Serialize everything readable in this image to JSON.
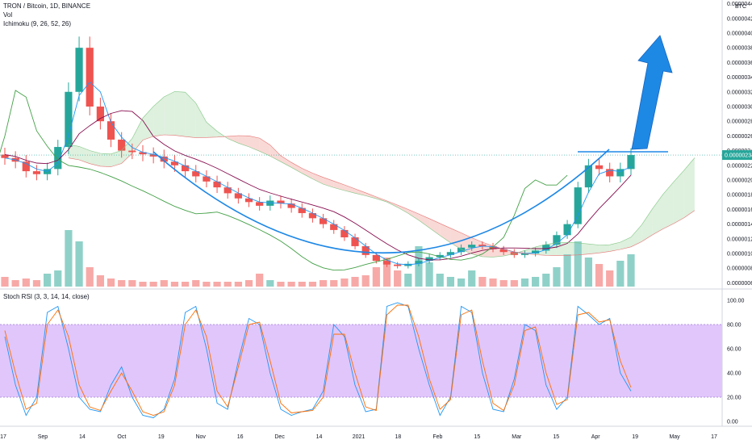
{
  "legend": {
    "symbol": "TRON / Bitcoin, 1D, BINANCE",
    "volume": "Vol",
    "ichimoku": "Ichimoku (9, 26, 52, 26)",
    "rsi": "Stoch RSI (3, 3, 14, 14, close)"
  },
  "colors": {
    "up": "#26a69a",
    "down": "#ef5350",
    "tenkan": "#2196f3",
    "kijun": "#880e4f",
    "lagging": "#43a047",
    "cloud_red": "#f8d0cc",
    "cloud_green": "#d6ecd6",
    "rsi_k": "#2196f3",
    "rsi_d": "#ff6d00",
    "rsi_band": "#e1c6fb",
    "arrow": "#1976d2",
    "cup": "#1e88e5"
  },
  "chart_data": [
    {
      "type": "line",
      "title": "",
      "price_axis": {
        "unit": "BTC",
        "ticks": [
          "0.00000440",
          "0.00000420",
          "0.00000400",
          "0.00000380",
          "0.00000360",
          "0.00000340",
          "0.00000320",
          "0.00000300",
          "0.00000280",
          "0.00000260",
          "0.00000240",
          "0.00000220",
          "0.00000200",
          "0.00000180",
          "0.00000160",
          "0.00000140",
          "0.00000120",
          "0.00000100",
          "0.00000080",
          "0.00000060"
        ],
        "current_price": "0.00000234",
        "range": [
          5.5e-07,
          4.45e-06
        ]
      },
      "x_axis": {
        "ticks": [
          "17",
          "Sep",
          "14",
          "Oct",
          "19",
          "Nov",
          "16",
          "Dec",
          "14",
          "2021",
          "18",
          "Feb",
          "15",
          "Mar",
          "15",
          "Apr",
          "19",
          "May",
          "17"
        ]
      },
      "series": [
        {
          "values": [
            2.3e-06,
            2.25e-06,
            2.12e-06,
            2.08e-06,
            2.15e-06,
            2.45e-06,
            3.2e-06,
            3.8e-06,
            3e-06,
            2.8e-06,
            2.55e-06,
            2.4e-06,
            2.38e-06,
            2.35e-06,
            2.32e-06,
            2.25e-06,
            2.2e-06,
            2.12e-06,
            2.05e-06,
            1.98e-06,
            1.9e-06,
            1.82e-06,
            1.75e-06,
            1.7e-06,
            1.65e-06,
            1.72e-06,
            1.68e-06,
            1.62e-06,
            1.55e-06,
            1.48e-06,
            1.4e-06,
            1.32e-06,
            1.22e-06,
            1.1e-06,
            9.8e-07,
            9e-07,
            8.5e-07,
            8.3e-07,
            8.6e-07,
            9e-07,
            9.5e-07,
            9.8e-07,
            1.02e-06,
            1.08e-06,
            1.12e-06,
            1.1e-06,
            1.06e-06,
            1.02e-06,
            9.8e-07,
            1e-06,
            1.04e-06,
            1.12e-06,
            1.25e-06,
            1.4e-06,
            1.9e-06,
            2.2e-06,
            2.15e-06,
            2.05e-06,
            2.15e-06,
            2.34e-06
          ]
        }
      ]
    },
    {
      "type": "bar",
      "title": "Vol",
      "values": [
        6,
        4,
        5,
        4,
        8,
        10,
        35,
        28,
        12,
        7,
        5,
        4,
        4,
        3,
        3,
        4,
        3,
        3,
        4,
        3,
        3,
        3,
        3,
        4,
        8,
        4,
        3,
        3,
        3,
        3,
        4,
        4,
        5,
        6,
        7,
        12,
        18,
        10,
        8,
        25,
        15,
        8,
        6,
        5,
        10,
        6,
        5,
        4,
        4,
        5,
        6,
        8,
        12,
        20,
        28,
        18,
        14,
        10,
        16,
        20
      ]
    },
    {
      "type": "line",
      "title": "Stoch RSI",
      "y_axis": {
        "ticks": [
          "100.00",
          "80.00",
          "60.00",
          "40.00",
          "20.00",
          "0.00"
        ],
        "range": [
          0,
          100
        ],
        "band": [
          20,
          80
        ]
      },
      "series": [
        {
          "values": [
            70,
            30,
            5,
            20,
            90,
            95,
            60,
            20,
            10,
            8,
            30,
            45,
            20,
            5,
            3,
            10,
            35,
            90,
            95,
            60,
            15,
            10,
            50,
            85,
            80,
            40,
            10,
            5,
            8,
            10,
            25,
            80,
            70,
            30,
            8,
            10,
            95,
            98,
            95,
            60,
            30,
            5,
            20,
            95,
            90,
            40,
            10,
            8,
            35,
            80,
            75,
            30,
            10,
            20,
            95,
            88,
            80,
            85,
            40,
            25
          ]
        },
        {
          "values": [
            75,
            40,
            10,
            15,
            80,
            92,
            70,
            30,
            12,
            9,
            25,
            40,
            25,
            8,
            5,
            8,
            30,
            80,
            92,
            70,
            25,
            12,
            45,
            80,
            82,
            50,
            15,
            7,
            8,
            9,
            20,
            72,
            72,
            40,
            12,
            9,
            88,
            96,
            96,
            70,
            35,
            10,
            18,
            88,
            92,
            50,
            15,
            9,
            30,
            75,
            78,
            40,
            14,
            18,
            88,
            90,
            82,
            84,
            50,
            28
          ]
        }
      ]
    }
  ]
}
